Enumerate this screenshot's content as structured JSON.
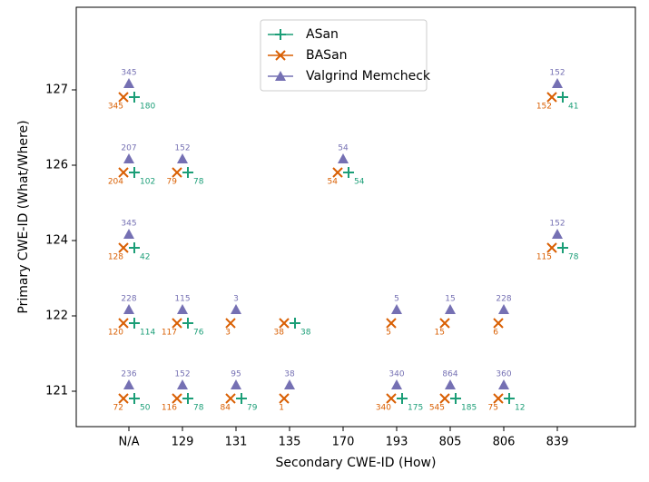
{
  "chart_data": {
    "type": "scatter",
    "xlabel": "Secondary CWE-ID (How)",
    "ylabel": "Primary CWE-ID (What/Where)",
    "categories": [
      "N/A",
      "129",
      "131",
      "135",
      "170",
      "193",
      "805",
      "806",
      "839"
    ],
    "yticks": [
      121,
      122,
      124,
      126,
      127
    ],
    "legend": "upper center",
    "series": [
      {
        "name": "ASan",
        "color": "#1b9e77",
        "marker": "plus",
        "x": [
          "N/A",
          "N/A",
          "N/A",
          "N/A",
          "N/A",
          "129",
          "129",
          "129",
          "131",
          "135",
          "170",
          "193",
          "805",
          "806",
          "839",
          "839"
        ],
        "y": [
          127,
          126,
          124,
          122,
          121,
          126,
          122,
          121,
          121,
          122,
          126,
          121,
          121,
          121,
          127,
          124
        ],
        "values": [
          180,
          102,
          42,
          114,
          50,
          78,
          76,
          78,
          79,
          38,
          54,
          175,
          185,
          12,
          41,
          78
        ]
      },
      {
        "name": "BASan",
        "color": "#d95f02",
        "marker": "x",
        "x": [
          "N/A",
          "N/A",
          "N/A",
          "N/A",
          "N/A",
          "129",
          "129",
          "129",
          "131",
          "131",
          "135",
          "135",
          "170",
          "193",
          "193",
          "805",
          "805",
          "806",
          "806",
          "839",
          "839"
        ],
        "y": [
          127,
          126,
          124,
          122,
          121,
          126,
          122,
          121,
          122,
          121,
          122,
          121,
          126,
          122,
          121,
          122,
          121,
          122,
          121,
          127,
          124
        ],
        "values": [
          345,
          204,
          128,
          120,
          72,
          79,
          117,
          116,
          3,
          84,
          38,
          1,
          54,
          5,
          340,
          15,
          545,
          6,
          75,
          152,
          115
        ]
      },
      {
        "name": "Valgrind Memcheck",
        "color": "#7570b3",
        "marker": "triangle",
        "x": [
          "N/A",
          "N/A",
          "N/A",
          "N/A",
          "N/A",
          "129",
          "129",
          "129",
          "131",
          "131",
          "135",
          "170",
          "193",
          "193",
          "805",
          "805",
          "806",
          "806",
          "839",
          "839"
        ],
        "y": [
          127,
          126,
          124,
          122,
          121,
          126,
          122,
          121,
          122,
          121,
          121,
          126,
          122,
          121,
          122,
          121,
          122,
          121,
          127,
          124
        ],
        "values": [
          345,
          207,
          345,
          228,
          236,
          152,
          115,
          152,
          3,
          95,
          38,
          54,
          5,
          340,
          15,
          864,
          228,
          360,
          152,
          152
        ]
      }
    ]
  }
}
